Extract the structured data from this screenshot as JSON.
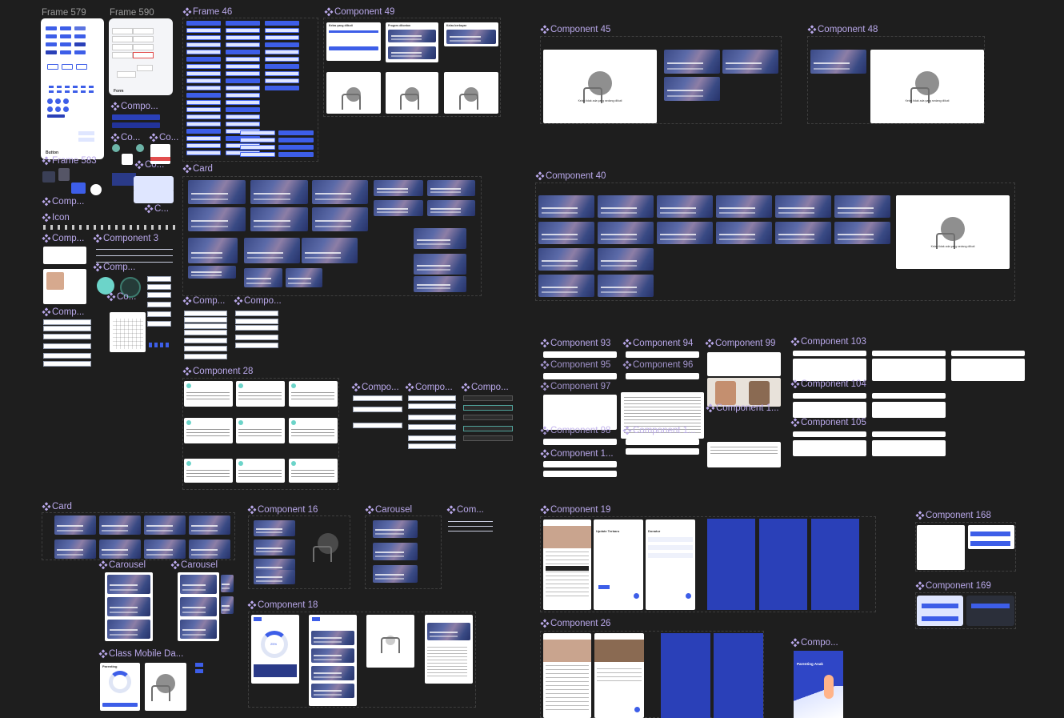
{
  "canvas": {
    "background": "#1e1e1e",
    "accent": "#b9a8ea",
    "primary": "#3d5ee8",
    "navy": "#2a40b8"
  },
  "labels": {
    "frame579": "Frame 579",
    "frame590": "Frame 590",
    "frame46": "Frame 46",
    "component49": "Component 49",
    "component45": "Component 45",
    "component48": "Component 48",
    "compo_a": "Compo...",
    "co_a": "Co...",
    "co_b": "Co...",
    "co_c": "Co...",
    "frame583": "Frame 583",
    "comp_a": "Comp...",
    "icon": "Icon",
    "comp_b": "Comp...",
    "component3": "Component 3",
    "comp_c": "Comp...",
    "co_d": "Co...",
    "c_a": "C...",
    "comp_d": "Comp...",
    "card_top": "Card",
    "component40": "Component 40",
    "comp_e": "Comp...",
    "compo_b": "Compo...",
    "component28": "Component 28",
    "compo_c": "Compo...",
    "compo_d": "Compo...",
    "compo_e": "Compo...",
    "component93": "Component 93",
    "component94": "Component 94",
    "component99": "Component 99",
    "component103": "Component 103",
    "component95": "Component 95",
    "component96": "Component 96",
    "component104": "Component 104",
    "component97": "Component 97",
    "component1a": "Component 1...",
    "component105": "Component 105",
    "component98": "Component 98",
    "component1b": "Component 1...",
    "component1c": "Component 1...",
    "card_bottom": "Card",
    "component16": "Component 16",
    "carousel_a": "Carousel",
    "com_a": "Com...",
    "component19": "Component 19",
    "component168": "Component 168",
    "carousel_b": "Carousel",
    "carousel_c": "Carousel",
    "component18": "Component 18",
    "component169": "Component 169",
    "component26": "Component 26",
    "class_mobile": "Class Mobile Da...",
    "compo_f": "Compo..."
  },
  "tiny_text": {
    "empty_state": "Kelas tidak ada yang sedang diikuti",
    "kelas_yang_diikuti": "Kelas yang diikuti",
    "progres_ditonton": "Progres ditonton",
    "kelas_berbayar": "Kelas berbayar",
    "parenting_anak": "Parenting Anak",
    "rekomendasi": "Rekomendasi",
    "lihat_semua": "Lihat semua",
    "update_terbaru": "Update Terbaru",
    "donatur": "Donatur",
    "rp_value": "Rp 20.000",
    "card_text": "Belajar dari Ketenangan, Kepercayaan dan Pengasuhan",
    "username": "Sahnan Sutiawan",
    "percent": "25%",
    "parenting": "Parenting"
  }
}
